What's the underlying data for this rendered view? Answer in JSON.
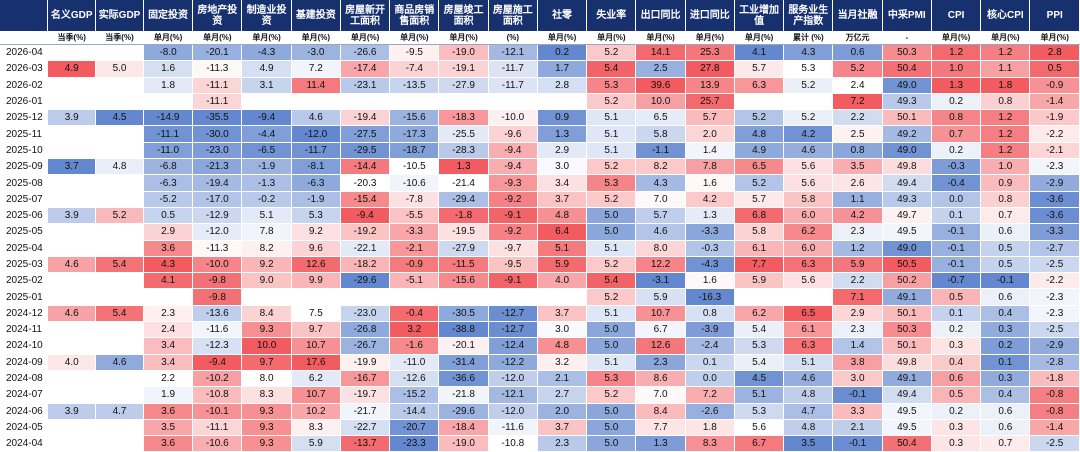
{
  "headers": [
    {
      "name": "",
      "unit": ""
    },
    {
      "name": "名义GDP",
      "unit": "当季(%)"
    },
    {
      "name": "实际GDP",
      "unit": "当季(%)"
    },
    {
      "name": "固定投资",
      "unit": "单月(%)"
    },
    {
      "name": "房地产投资",
      "unit": "单月(%)"
    },
    {
      "name": "制造业投资",
      "unit": "单月(%)"
    },
    {
      "name": "基建投资",
      "unit": "单月(%)"
    },
    {
      "name": "房屋新开工面积",
      "unit": "单月(%)"
    },
    {
      "name": "商品房销售面积",
      "unit": "单月(%)"
    },
    {
      "name": "房屋竣工面积",
      "unit": "单月(%)"
    },
    {
      "name": "房屋施工面积",
      "unit": "(%)"
    },
    {
      "name": "社零",
      "unit": "单月(%)"
    },
    {
      "name": "失业率",
      "unit": "单月(%)"
    },
    {
      "name": "出口同比",
      "unit": "单月(%)"
    },
    {
      "name": "进口同比",
      "unit": "单月(%)"
    },
    {
      "name": "工业增加值",
      "unit": "单月(%)"
    },
    {
      "name": "服务业生产指数",
      "unit": "累计 (%)"
    },
    {
      "name": "当月社融",
      "unit": "万亿元"
    },
    {
      "name": "中采PMI",
      "unit": "-"
    },
    {
      "name": "CPI",
      "unit": "单月(%)"
    },
    {
      "name": "核心CPI",
      "unit": "单月(%)"
    },
    {
      "name": "PPI",
      "unit": "单月(%)"
    }
  ],
  "rows": [
    {
      "date": "2026-04",
      "v": [
        "",
        "",
        "-8.0",
        "-20.1",
        "-4.3",
        "-3.0",
        "-26.6",
        "-9.5",
        "-19.0",
        "-12.1",
        "0.2",
        "5.2",
        "14.1",
        "25.3",
        "4.1",
        "4.3",
        "0.6",
        "50.3",
        "1.2",
        "1.2",
        "2.8"
      ]
    },
    {
      "date": "2026-03",
      "v": [
        "4.9",
        "5.0",
        "1.6",
        "-11.3",
        "4.9",
        "7.2",
        "-17.4",
        "-7.4",
        "-19.1",
        "-11.7",
        "1.7",
        "5.4",
        "2.5",
        "27.8",
        "5.7",
        "5.3",
        "5.2",
        "50.4",
        "1.0",
        "1.1",
        "0.5"
      ]
    },
    {
      "date": "2026-02",
      "v": [
        "",
        "",
        "1.8",
        "-11.1",
        "3.1",
        "11.4",
        "-23.1",
        "-13.5",
        "-27.9",
        "-11.7",
        "2.8",
        "5.3",
        "39.6",
        "13.9",
        "6.3",
        "5.2",
        "2.4",
        "49.0",
        "1.3",
        "1.8",
        "-0.9"
      ]
    },
    {
      "date": "2026-01",
      "v": [
        "",
        "",
        "",
        "-11.1",
        "",
        "",
        "",
        "",
        "",
        "",
        "",
        "5.2",
        "10.0",
        "25.7",
        "",
        "",
        "7.2",
        "49.3",
        "0.2",
        "0.8",
        "-1.4"
      ]
    },
    {
      "date": "2025-12",
      "v": [
        "3.9",
        "4.5",
        "-14.9",
        "-35.5",
        "-9.4",
        "4.6",
        "-19.4",
        "-15.6",
        "-18.3",
        "-10.0",
        "0.9",
        "5.1",
        "6.5",
        "5.7",
        "5.2",
        "5.2",
        "2.2",
        "50.1",
        "0.8",
        "1.2",
        "-1.9"
      ]
    },
    {
      "date": "2025-11",
      "v": [
        "",
        "",
        "-11.1",
        "-30.0",
        "-4.4",
        "-12.0",
        "-27.5",
        "-17.3",
        "-25.5",
        "-9.6",
        "1.3",
        "5.1",
        "5.8",
        "2.0",
        "4.8",
        "4.2",
        "2.5",
        "49.2",
        "0.7",
        "1.2",
        "-2.2"
      ]
    },
    {
      "date": "2025-10",
      "v": [
        "",
        "",
        "-11.0",
        "-23.0",
        "-6.5",
        "-11.7",
        "-29.5",
        "-18.7",
        "-28.3",
        "-9.4",
        "2.9",
        "5.1",
        "-1.1",
        "1.4",
        "4.9",
        "4.6",
        "0.8",
        "49.0",
        "0.2",
        "1.2",
        "-2.1"
      ]
    },
    {
      "date": "2025-09",
      "v": [
        "3.7",
        "4.8",
        "-6.8",
        "-21.3",
        "-1.9",
        "-8.1",
        "-14.4",
        "-10.5",
        "1.3",
        "-9.4",
        "3.0",
        "5.2",
        "8.2",
        "7.8",
        "6.5",
        "5.6",
        "3.5",
        "49.8",
        "-0.3",
        "1.0",
        "-2.3"
      ]
    },
    {
      "date": "2025-08",
      "v": [
        "",
        "",
        "-6.3",
        "-19.4",
        "-1.3",
        "-6.3",
        "-20.3",
        "-10.6",
        "-21.4",
        "-9.3",
        "3.4",
        "5.3",
        "4.3",
        "1.6",
        "5.2",
        "5.6",
        "2.6",
        "49.4",
        "-0.4",
        "0.9",
        "-2.9"
      ]
    },
    {
      "date": "2025-07",
      "v": [
        "",
        "",
        "-5.2",
        "-17.0",
        "-0.2",
        "-1.9",
        "-15.4",
        "-7.8",
        "-29.4",
        "-9.2",
        "3.7",
        "5.2",
        "7.0",
        "4.2",
        "5.7",
        "5.8",
        "1.1",
        "49.3",
        "0.0",
        "0.8",
        "-3.6"
      ]
    },
    {
      "date": "2025-06",
      "v": [
        "3.9",
        "5.2",
        "0.5",
        "-12.9",
        "5.1",
        "5.3",
        "-9.4",
        "-5.5",
        "-1.8",
        "-9.1",
        "4.8",
        "5.0",
        "5.7",
        "1.3",
        "6.8",
        "6.0",
        "4.2",
        "49.7",
        "0.1",
        "0.7",
        "-3.6"
      ]
    },
    {
      "date": "2025-05",
      "v": [
        "",
        "",
        "2.9",
        "-12.0",
        "7.8",
        "9.2",
        "-19.2",
        "-3.3",
        "-19.5",
        "-9.2",
        "6.4",
        "5.0",
        "4.6",
        "-3.3",
        "5.8",
        "6.2",
        "2.3",
        "49.5",
        "-0.1",
        "0.6",
        "-3.3"
      ]
    },
    {
      "date": "2025-04",
      "v": [
        "",
        "",
        "3.6",
        "-11.3",
        "8.2",
        "9.6",
        "-22.1",
        "-2.1",
        "-27.9",
        "-9.7",
        "5.1",
        "5.1",
        "8.0",
        "-0.3",
        "6.1",
        "6.0",
        "1.2",
        "49.0",
        "-0.1",
        "0.5",
        "-2.7"
      ]
    },
    {
      "date": "2025-03",
      "v": [
        "4.6",
        "5.4",
        "4.3",
        "-10.0",
        "9.2",
        "12.6",
        "-18.2",
        "-0.9",
        "-11.5",
        "-9.5",
        "5.9",
        "5.2",
        "12.2",
        "-4.3",
        "7.7",
        "6.3",
        "5.9",
        "50.5",
        "-0.1",
        "0.5",
        "-2.5"
      ]
    },
    {
      "date": "2025-02",
      "v": [
        "",
        "",
        "4.1",
        "-9.8",
        "9.0",
        "9.9",
        "-29.6",
        "-5.1",
        "-15.6",
        "-9.1",
        "4.0",
        "5.4",
        "-3.1",
        "1.6",
        "5.9",
        "5.6",
        "2.2",
        "50.2",
        "-0.7",
        "-0.1",
        "-2.2"
      ]
    },
    {
      "date": "2025-01",
      "v": [
        "",
        "",
        "",
        "-9.8",
        "",
        "",
        "",
        "",
        "",
        "",
        "",
        "5.2",
        "5.9",
        "-16.3",
        "",
        "",
        "7.1",
        "49.1",
        "0.5",
        "0.6",
        "-2.3"
      ]
    },
    {
      "date": "2024-12",
      "v": [
        "4.6",
        "5.4",
        "2.3",
        "-13.6",
        "8.4",
        "7.5",
        "-23.0",
        "-0.4",
        "-30.5",
        "-12.7",
        "3.7",
        "5.1",
        "10.7",
        "0.8",
        "6.2",
        "6.5",
        "2.9",
        "50.1",
        "0.1",
        "0.4",
        "-2.3"
      ]
    },
    {
      "date": "2024-11",
      "v": [
        "",
        "",
        "2.4",
        "-11.6",
        "9.3",
        "9.7",
        "-26.8",
        "3.2",
        "-38.8",
        "-12.7",
        "3.0",
        "5.0",
        "6.7",
        "-3.9",
        "5.4",
        "6.1",
        "2.3",
        "50.3",
        "0.2",
        "0.3",
        "-2.5"
      ]
    },
    {
      "date": "2024-10",
      "v": [
        "",
        "",
        "3.4",
        "-12.3",
        "10.0",
        "10.7",
        "-26.7",
        "-1.6",
        "-20.1",
        "-12.4",
        "4.8",
        "5.0",
        "12.6",
        "-2.4",
        "5.3",
        "6.3",
        "1.4",
        "50.1",
        "0.3",
        "0.2",
        "-2.9"
      ]
    },
    {
      "date": "2024-09",
      "v": [
        "4.0",
        "4.6",
        "3.4",
        "-9.4",
        "9.7",
        "17.6",
        "-19.9",
        "-11.0",
        "-31.4",
        "-12.2",
        "3.2",
        "5.1",
        "2.3",
        "0.1",
        "5.4",
        "5.1",
        "3.8",
        "49.8",
        "0.4",
        "0.1",
        "-2.8"
      ]
    },
    {
      "date": "2024-08",
      "v": [
        "",
        "",
        "2.2",
        "-10.2",
        "8.0",
        "6.2",
        "-16.7",
        "-12.6",
        "-36.6",
        "-12.0",
        "2.1",
        "5.3",
        "8.6",
        "0.0",
        "4.5",
        "4.6",
        "3.0",
        "49.1",
        "0.6",
        "0.3",
        "-1.8"
      ]
    },
    {
      "date": "2024-07",
      "v": [
        "",
        "",
        "1.9",
        "-10.8",
        "8.3",
        "10.7",
        "-19.7",
        "-15.2",
        "-21.8",
        "-12.1",
        "2.7",
        "5.2",
        "7.0",
        "7.2",
        "5.1",
        "4.8",
        "-0.1",
        "49.4",
        "0.5",
        "0.4",
        "-0.8"
      ]
    },
    {
      "date": "2024-06",
      "v": [
        "3.9",
        "4.7",
        "3.6",
        "-10.1",
        "9.3",
        "10.2",
        "-21.7",
        "-14.4",
        "-29.6",
        "-12.0",
        "2.0",
        "5.0",
        "8.4",
        "-2.6",
        "5.3",
        "4.7",
        "3.3",
        "49.5",
        "0.2",
        "0.6",
        "-0.8"
      ]
    },
    {
      "date": "2024-05",
      "v": [
        "",
        "",
        "3.5",
        "-11.1",
        "9.3",
        "8.3",
        "-22.7",
        "-20.7",
        "-18.4",
        "-11.6",
        "3.7",
        "5.0",
        "7.7",
        "1.8",
        "5.6",
        "4.8",
        "2.1",
        "49.5",
        "0.3",
        "0.6",
        "-1.4"
      ]
    },
    {
      "date": "2024-04",
      "v": [
        "",
        "",
        "3.6",
        "-10.6",
        "9.3",
        "5.9",
        "-13.7",
        "-23.3",
        "-19.0",
        "-10.8",
        "2.3",
        "5.0",
        "1.3",
        "8.3",
        "6.7",
        "3.5",
        "-0.1",
        "50.4",
        "0.3",
        "0.7",
        "-2.5"
      ]
    }
  ],
  "colors": {
    "header_bg": "#17306e",
    "header_text": "#ffffff",
    "positive": "#f0464b",
    "negative": "#4f78c8",
    "neutral": "#ffffff"
  }
}
